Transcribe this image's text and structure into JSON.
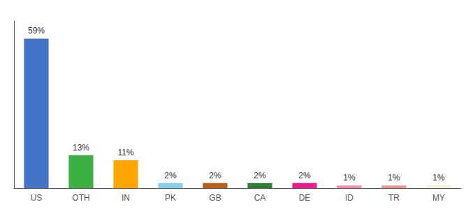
{
  "chart_data": {
    "type": "bar",
    "categories": [
      "US",
      "OTH",
      "IN",
      "PK",
      "GB",
      "CA",
      "DE",
      "ID",
      "TR",
      "MY"
    ],
    "values": [
      59,
      13,
      11,
      2,
      2,
      2,
      2,
      1,
      1,
      1
    ],
    "value_labels": [
      "59%",
      "13%",
      "11%",
      "2%",
      "2%",
      "2%",
      "2%",
      "1%",
      "1%",
      "1%"
    ],
    "colors": [
      "#4472c4",
      "#3cb043",
      "#ffa500",
      "#87ceeb",
      "#b8601a",
      "#2e7d32",
      "#e91e8c",
      "#f48fb1",
      "#e8998d",
      "#f5f0d8"
    ],
    "ylim": [
      0,
      66
    ],
    "data_labels": true,
    "tick_labels": "x",
    "grid": false
  }
}
